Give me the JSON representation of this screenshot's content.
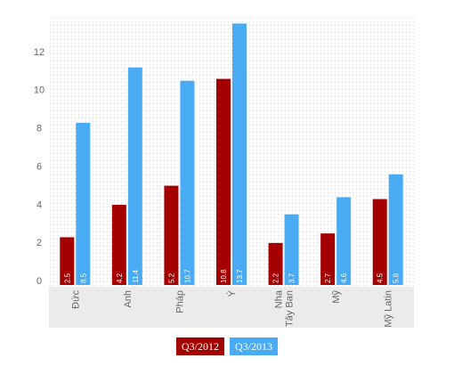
{
  "chart_data": {
    "type": "bar",
    "categories": [
      "Đức",
      "Anh",
      "Pháp",
      "Ý",
      "Tây Ban Nha",
      "Mỹ",
      "Mỹ Latin"
    ],
    "series": [
      {
        "name": "Q3/2012",
        "color": "#a50000",
        "values": [
          2.5,
          4.2,
          5.2,
          10.8,
          2.2,
          2.7,
          4.5
        ]
      },
      {
        "name": "Q3/2013",
        "color": "#4aabf5",
        "values": [
          8.5,
          11.4,
          10.7,
          13.7,
          3.7,
          4.6,
          5.8
        ]
      }
    ],
    "yticks": [
      0,
      2,
      4,
      6,
      8,
      10,
      12
    ],
    "ylim": [
      0,
      14
    ],
    "grid": "dotted",
    "legend_position": "bottom-center"
  },
  "value_labels": [
    [
      "2.5",
      "4.2",
      "5.2",
      "10.8",
      "2.2",
      "2.7",
      "4.5"
    ],
    [
      "8.5",
      "11.4",
      "10.7",
      "13.7",
      "3.7",
      "4.6",
      "5.8"
    ]
  ],
  "category_label_lines": [
    [
      "Đức"
    ],
    [
      "Anh"
    ],
    [
      "Pháp"
    ],
    [
      "Ý"
    ],
    [
      "Tây Ban",
      "Nha"
    ],
    [
      "Mỹ"
    ],
    [
      "Mỹ Latin"
    ]
  ],
  "legend": [
    {
      "label": "Q3/2012",
      "color": "#a50000"
    },
    {
      "label": "Q3/2013",
      "color": "#4aabf5"
    }
  ]
}
